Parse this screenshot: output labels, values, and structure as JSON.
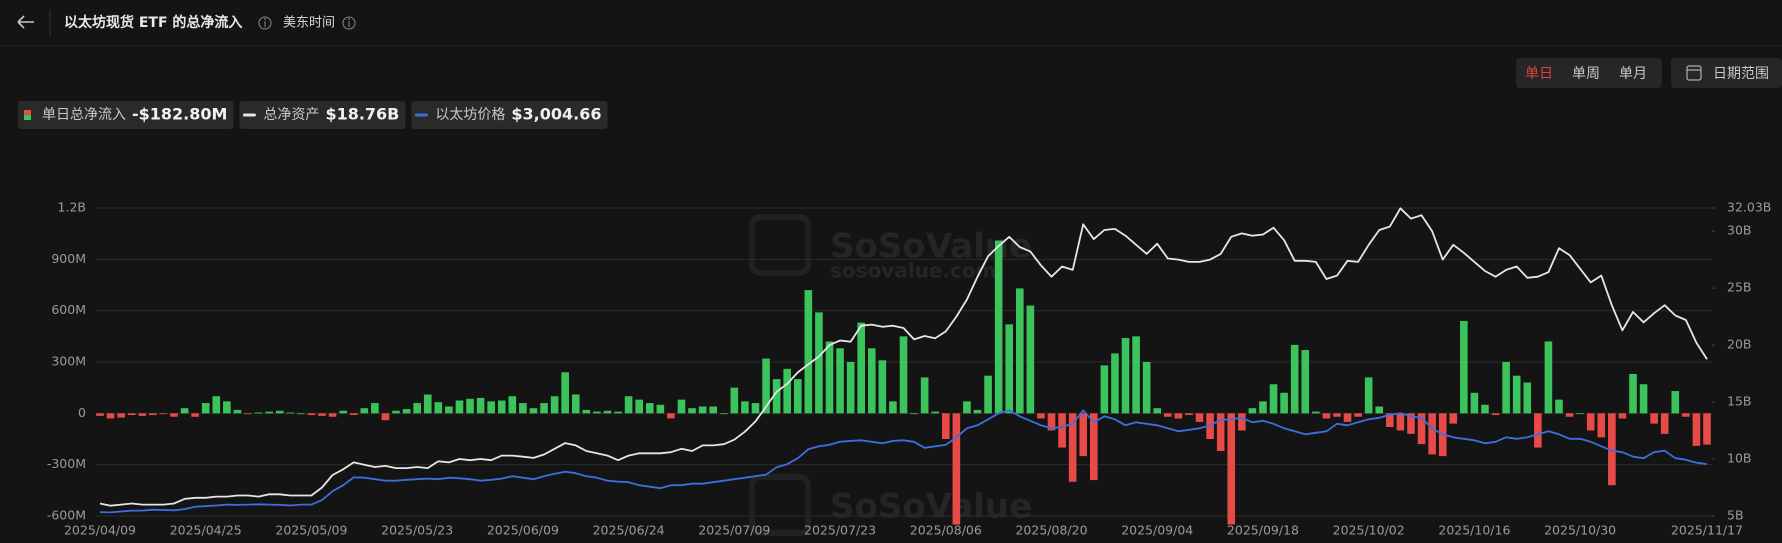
{
  "ui": {
    "title": "以太坊现货 ETF 的总净流入",
    "timezone": "美东时间",
    "periods": [
      "单日",
      "单周",
      "单月"
    ],
    "active_period": 0,
    "date_range": "日期范围",
    "watermark": "SoSoValue",
    "watermark_url": "sosovalue.com"
  },
  "chart_data": {
    "type": "combo",
    "grid": true,
    "categories": [
      "2025/04/09",
      null,
      null,
      null,
      null,
      null,
      null,
      null,
      null,
      null,
      "2025/04/25",
      null,
      null,
      null,
      null,
      null,
      null,
      null,
      null,
      null,
      "2025/05/09",
      null,
      null,
      null,
      null,
      null,
      null,
      null,
      null,
      null,
      "2025/05/23",
      null,
      null,
      null,
      null,
      null,
      null,
      null,
      null,
      null,
      "2025/06/09",
      null,
      null,
      null,
      null,
      null,
      null,
      null,
      null,
      null,
      "2025/06/24",
      null,
      null,
      null,
      null,
      null,
      null,
      null,
      null,
      null,
      "2025/07/09",
      null,
      null,
      null,
      null,
      null,
      null,
      null,
      null,
      null,
      "2025/07/23",
      null,
      null,
      null,
      null,
      null,
      null,
      null,
      null,
      null,
      "2025/08/06",
      null,
      null,
      null,
      null,
      null,
      null,
      null,
      null,
      null,
      "2025/08/20",
      null,
      null,
      null,
      null,
      null,
      null,
      null,
      null,
      null,
      "2025/09/04",
      null,
      null,
      null,
      null,
      null,
      null,
      null,
      null,
      null,
      "2025/09/18",
      null,
      null,
      null,
      null,
      null,
      null,
      null,
      null,
      null,
      "2025/10/02",
      null,
      null,
      null,
      null,
      null,
      null,
      null,
      null,
      null,
      "2025/10/16",
      null,
      null,
      null,
      null,
      null,
      null,
      null,
      null,
      null,
      "2025/10/30",
      null,
      null,
      null,
      null,
      null,
      null,
      null,
      null,
      null,
      null,
      null,
      "2025/11/17"
    ],
    "ylim": [
      -600,
      1200
    ],
    "yticks": [
      {
        "value": -600,
        "label": "-600M"
      },
      {
        "value": -300,
        "label": "-300M"
      },
      {
        "value": 0,
        "label": "0"
      },
      {
        "value": 300,
        "label": "300M"
      },
      {
        "value": 600,
        "label": "600M"
      },
      {
        "value": 900,
        "label": "900M"
      },
      {
        "value": 1200,
        "label": "1.2B"
      }
    ],
    "y2lim": [
      5,
      32.03
    ],
    "y2ticks": [
      {
        "value": 5,
        "label": "5B"
      },
      {
        "value": 10,
        "label": "10B"
      },
      {
        "value": 15,
        "label": "15B"
      },
      {
        "value": 20,
        "label": "20B"
      },
      {
        "value": 25,
        "label": "25B"
      },
      {
        "value": 30,
        "label": "30B"
      },
      {
        "value": 32.03,
        "label": "32.03B"
      }
    ],
    "y3lim": [
      1270,
      11560
    ],
    "series": [
      {
        "name": "单日总净流入",
        "type": "bar",
        "latest_label": "-$182.80M",
        "positive_color": "#3cc45c",
        "negative_color": "#e84a48",
        "values": [
          -15,
          -30,
          -25,
          -10,
          -15,
          -10,
          -5,
          -20,
          30,
          -20,
          60,
          100,
          70,
          20,
          -5,
          5,
          10,
          15,
          5,
          0,
          -10,
          -15,
          -20,
          15,
          -10,
          30,
          60,
          -40,
          15,
          25,
          60,
          110,
          65,
          40,
          75,
          85,
          90,
          70,
          75,
          100,
          60,
          30,
          60,
          100,
          240,
          110,
          20,
          10,
          15,
          10,
          100,
          80,
          60,
          50,
          -30,
          80,
          30,
          40,
          40,
          0,
          150,
          70,
          60,
          320,
          200,
          260,
          200,
          720,
          590,
          420,
          380,
          300,
          530,
          380,
          310,
          70,
          450,
          0,
          210,
          10,
          -150,
          -650,
          70,
          20,
          220,
          1010,
          520,
          730,
          630,
          -30,
          -100,
          -200,
          -400,
          -250,
          -390,
          280,
          350,
          440,
          450,
          300,
          30,
          -20,
          -30,
          -10,
          -50,
          -150,
          -220,
          -650,
          -100,
          30,
          70,
          170,
          120,
          400,
          370,
          10,
          -30,
          -20,
          -50,
          -20,
          210,
          40,
          -80,
          -100,
          -120,
          -180,
          -240,
          -250,
          -60,
          540,
          120,
          50,
          -10,
          300,
          220,
          180,
          -200,
          420,
          80,
          -20,
          0,
          -100,
          -140,
          -420,
          -30,
          230,
          170,
          -60,
          -120,
          130,
          -20,
          -190,
          -182.8
        ]
      },
      {
        "name": "总净资产",
        "type": "line",
        "axis": "y2",
        "latest_label": "$18.76B",
        "color": "#e6e6e6",
        "values": [
          6.1,
          5.9,
          6.0,
          6.1,
          6.0,
          6.0,
          6.0,
          6.1,
          6.5,
          6.6,
          6.6,
          6.7,
          6.7,
          6.8,
          6.8,
          6.7,
          6.9,
          6.9,
          6.8,
          6.8,
          6.8,
          7.5,
          8.6,
          9.1,
          9.7,
          9.5,
          9.3,
          9.4,
          9.2,
          9.2,
          9.3,
          9.2,
          9.8,
          9.7,
          10.0,
          9.9,
          10.0,
          9.9,
          10.3,
          10.3,
          10.2,
          10.1,
          10.4,
          10.9,
          11.4,
          11.2,
          10.7,
          10.5,
          10.3,
          9.9,
          10.3,
          10.5,
          10.5,
          10.5,
          10.6,
          10.9,
          10.7,
          11.2,
          11.2,
          11.3,
          11.7,
          12.4,
          13.3,
          14.6,
          15.9,
          16.6,
          17.6,
          18.3,
          19.0,
          20.0,
          20.4,
          20.3,
          21.7,
          21.8,
          21.6,
          21.7,
          21.5,
          20.5,
          20.8,
          20.6,
          21.2,
          22.5,
          24.0,
          26.0,
          27.8,
          28.7,
          29.5,
          28.6,
          28.2,
          27.0,
          26.0,
          26.9,
          26.6,
          30.6,
          29.3,
          30.1,
          30.2,
          29.6,
          28.8,
          28.0,
          28.9,
          27.6,
          27.5,
          27.3,
          27.3,
          27.5,
          28.0,
          29.5,
          29.8,
          29.6,
          29.7,
          30.3,
          29.2,
          27.4,
          27.4,
          27.3,
          25.8,
          26.1,
          27.4,
          27.3,
          28.8,
          30.1,
          30.4,
          32.0,
          31.1,
          31.4,
          30.0,
          27.5,
          28.8,
          28.1,
          27.3,
          26.5,
          26.0,
          26.6,
          26.9,
          25.9,
          26.0,
          26.4,
          28.5,
          27.9,
          26.7,
          25.5,
          26.1,
          23.5,
          21.3,
          22.9,
          22.0,
          22.8,
          23.5,
          22.6,
          22.2,
          20.2,
          18.76
        ]
      },
      {
        "name": "以太坊价格",
        "type": "line",
        "axis": "y3",
        "latest_label": "$3,004.66",
        "color": "#3d6fdc",
        "values": [
          1400,
          1390,
          1420,
          1450,
          1450,
          1480,
          1470,
          1460,
          1500,
          1580,
          1600,
          1620,
          1650,
          1640,
          1650,
          1660,
          1650,
          1640,
          1620,
          1650,
          1650,
          1800,
          2100,
          2300,
          2560,
          2550,
          2500,
          2450,
          2450,
          2480,
          2500,
          2520,
          2500,
          2550,
          2530,
          2500,
          2450,
          2480,
          2520,
          2600,
          2550,
          2500,
          2600,
          2680,
          2750,
          2700,
          2600,
          2550,
          2450,
          2420,
          2400,
          2300,
          2250,
          2200,
          2300,
          2300,
          2350,
          2350,
          2400,
          2450,
          2500,
          2550,
          2600,
          2650,
          2900,
          3000,
          3200,
          3500,
          3600,
          3650,
          3750,
          3780,
          3800,
          3750,
          3700,
          3780,
          3800,
          3750,
          3550,
          3600,
          3650,
          3900,
          4200,
          4300,
          4500,
          4700,
          4800,
          4600,
          4450,
          4300,
          4200,
          4250,
          4350,
          4800,
          4400,
          4600,
          4500,
          4300,
          4400,
          4350,
          4300,
          4200,
          4100,
          4150,
          4200,
          4300,
          4480,
          4500,
          4550,
          4400,
          4450,
          4350,
          4200,
          4100,
          4000,
          4050,
          4100,
          4350,
          4300,
          4400,
          4500,
          4550,
          4650,
          4700,
          4600,
          4550,
          4200,
          4000,
          3900,
          3850,
          3800,
          3700,
          3750,
          3900,
          3850,
          3900,
          4000,
          4100,
          4000,
          3850,
          3850,
          3750,
          3600,
          3450,
          3400,
          3250,
          3200,
          3400,
          3450,
          3200,
          3150,
          3050,
          3004.66
        ]
      }
    ]
  }
}
